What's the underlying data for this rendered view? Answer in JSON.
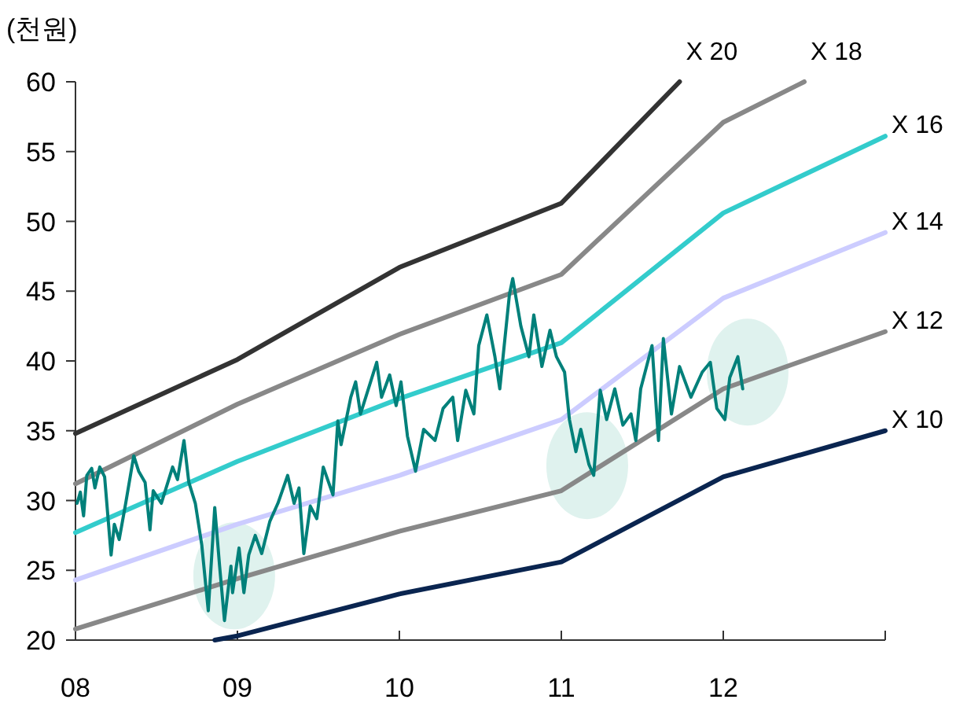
{
  "chart_data": {
    "type": "line",
    "ylabel": "(천원)",
    "xlim": [
      2008,
      2013
    ],
    "ylim": [
      20,
      60
    ],
    "xticks": [
      {
        "value": 2008,
        "label": "08"
      },
      {
        "value": 2009,
        "label": "09"
      },
      {
        "value": 2010,
        "label": "10"
      },
      {
        "value": 2011,
        "label": "11"
      },
      {
        "value": 2012,
        "label": "12"
      },
      {
        "value": 2013,
        "label": null
      }
    ],
    "yticks": [
      20,
      25,
      30,
      35,
      40,
      45,
      50,
      55,
      60
    ],
    "grid": false,
    "legend": false,
    "marker": "none",
    "line_style": "solid",
    "series": [
      {
        "name": "X 20",
        "color": "#333333",
        "x": [
          2008,
          2009,
          2010,
          2011,
          2011.73
        ],
        "values": [
          34.8,
          40.1,
          46.7,
          51.3,
          60
        ]
      },
      {
        "name": "X 18",
        "color": "#888888",
        "x": [
          2008,
          2009,
          2010,
          2011,
          2012,
          2012.5
        ],
        "values": [
          31.2,
          36.9,
          41.9,
          46.2,
          57.1,
          60
        ]
      },
      {
        "name": "X 16",
        "color": "#33cccc",
        "x": [
          2008,
          2009,
          2010,
          2011,
          2012,
          2013
        ],
        "values": [
          27.7,
          32.8,
          37.3,
          41.3,
          50.6,
          56.1
        ]
      },
      {
        "name": "X 14",
        "color": "#ccccff",
        "x": [
          2008,
          2009,
          2010,
          2011,
          2012,
          2013
        ],
        "values": [
          24.3,
          28.3,
          31.8,
          35.8,
          44.5,
          49.2
        ]
      },
      {
        "name": "X 12",
        "color": "#888888",
        "x": [
          2008,
          2009,
          2010,
          2011,
          2012,
          2013
        ],
        "values": [
          20.8,
          24.4,
          27.8,
          30.7,
          38.0,
          42.1
        ]
      },
      {
        "name": "X 10",
        "color": "#0a2550",
        "x": [
          2008.86,
          2009,
          2010,
          2011,
          2012,
          2013
        ],
        "values": [
          20,
          20.3,
          23.3,
          25.6,
          31.7,
          35.0
        ]
      },
      {
        "color": "#00807a",
        "x": [
          2008.01,
          2008.03,
          2008.05,
          2008.07,
          2008.1,
          2008.12,
          2008.15,
          2008.18,
          2008.22,
          2008.24,
          2008.27,
          2008.31,
          2008.36,
          2008.39,
          2008.43,
          2008.46,
          2008.48,
          2008.53,
          2008.6,
          2008.63,
          2008.67,
          2008.7,
          2008.74,
          2008.78,
          2008.82,
          2008.86,
          2008.89,
          2008.92,
          2008.96,
          2008.97,
          2009.01,
          2009.04,
          2009.07,
          2009.11,
          2009.15,
          2009.2,
          2009.25,
          2009.31,
          2009.35,
          2009.38,
          2009.41,
          2009.45,
          2009.49,
          2009.53,
          2009.59,
          2009.62,
          2009.64,
          2009.7,
          2009.73,
          2009.76,
          2009.86,
          2009.89,
          2009.94,
          2009.98,
          2010.01,
          2010.05,
          2010.1,
          2010.15,
          2010.22,
          2010.27,
          2010.33,
          2010.36,
          2010.41,
          2010.46,
          2010.49,
          2010.54,
          2010.59,
          2010.62,
          2010.68,
          2010.7,
          2010.75,
          2010.8,
          2010.83,
          2010.88,
          2010.93,
          2010.97,
          2011.02,
          2011.05,
          2011.09,
          2011.12,
          2011.17,
          2011.2,
          2011.24,
          2011.28,
          2011.33,
          2011.38,
          2011.43,
          2011.46,
          2011.49,
          2011.56,
          2011.6,
          2011.63,
          2011.68,
          2011.73,
          2011.8,
          2011.87,
          2011.92,
          2011.96,
          2012.01,
          2012.04,
          2012.09,
          2012.12
        ],
        "values": [
          29.8,
          30.6,
          28.9,
          31.8,
          32.3,
          30.9,
          32.4,
          31.7,
          26.1,
          28.3,
          27.2,
          29.8,
          33.2,
          32.1,
          31.3,
          27.9,
          30.7,
          29.8,
          32.4,
          31.5,
          34.3,
          31.3,
          29.8,
          26.8,
          22.1,
          29.5,
          25.3,
          21.4,
          25.3,
          23.4,
          26.6,
          23.4,
          26.1,
          27.5,
          26.2,
          28.5,
          29.8,
          31.8,
          29.8,
          30.9,
          26.2,
          29.6,
          28.7,
          32.4,
          30.4,
          35.7,
          34.0,
          37.4,
          38.5,
          36.2,
          39.9,
          37.4,
          39.0,
          36.8,
          38.5,
          34.6,
          32.1,
          35.1,
          34.3,
          36.6,
          37.4,
          34.3,
          37.9,
          36.2,
          41.1,
          43.3,
          40.3,
          38.0,
          44.8,
          45.9,
          42.5,
          40.3,
          43.3,
          39.6,
          42.2,
          40.3,
          39.2,
          35.8,
          33.5,
          35.1,
          32.6,
          31.8,
          37.9,
          35.8,
          38.0,
          35.4,
          36.2,
          34.3,
          38.0,
          41.1,
          34.3,
          41.6,
          36.2,
          39.6,
          37.4,
          39.2,
          39.9,
          36.6,
          35.8,
          38.8,
          40.3,
          38.0
        ]
      }
    ]
  }
}
